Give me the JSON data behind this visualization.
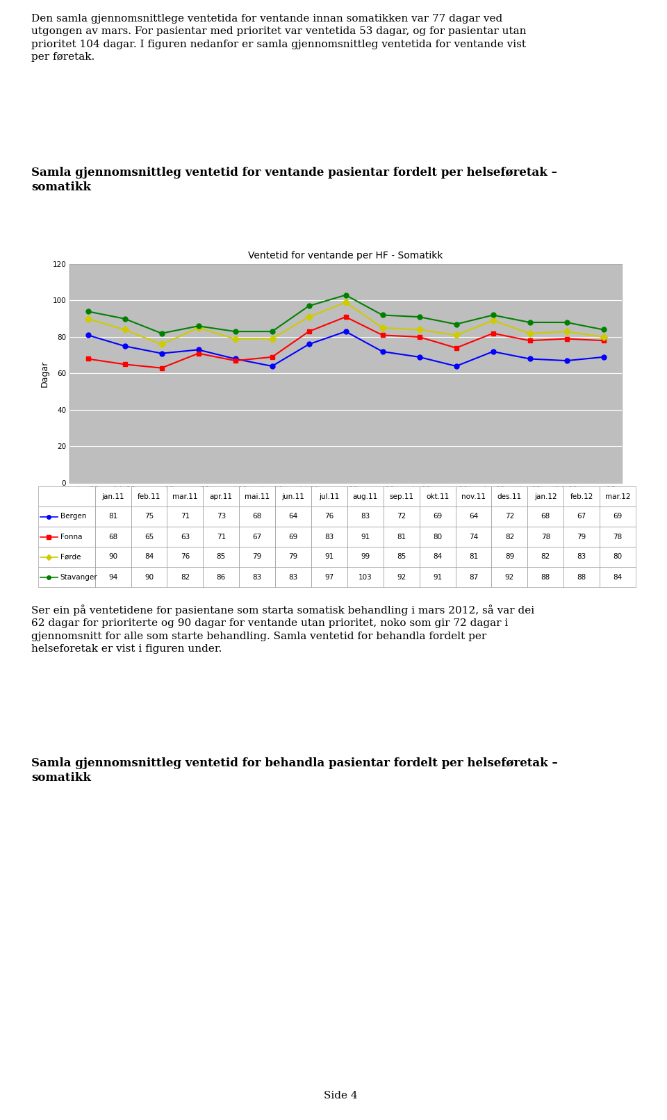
{
  "page_text_top": "Den samla gjennomsnittlege ventetida for ventande innan somatikken var 77 dagar ved utgongen av mars. For pasientar med prioritet var ventetida 53 dagar, og for pasientar utan prioritet 104 dagar. I figuren nedanfor er samla gjennomsnittleg ventetida for ventande vist per føretak.",
  "heading1": "Samla gjennomsnittleg ventetid for ventande pasientar fordelt per helseføretak –\nsomatikk",
  "chart_title": "Ventetid for ventande per HF - Somatikk",
  "ylabel": "Dagar",
  "x_labels": [
    "jan.11",
    "feb.11",
    "mar.11",
    "apr.11",
    "mai.11",
    "jun.11",
    "jul.11",
    "aug.11",
    "sep.11",
    "okt.11",
    "nov.11",
    "des.11",
    "jan.12",
    "feb.12",
    "mar.12"
  ],
  "series": [
    {
      "name": "Bergen",
      "color": "#0000FF",
      "marker": "o",
      "values": [
        81,
        75,
        71,
        73,
        68,
        64,
        76,
        83,
        72,
        69,
        64,
        72,
        68,
        67,
        69
      ]
    },
    {
      "name": "Fonna",
      "color": "#FF0000",
      "marker": "s",
      "values": [
        68,
        65,
        63,
        71,
        67,
        69,
        83,
        91,
        81,
        80,
        74,
        82,
        78,
        79,
        78
      ]
    },
    {
      "name": "Førde",
      "color": "#CCCC00",
      "marker": "D",
      "values": [
        90,
        84,
        76,
        85,
        79,
        79,
        91,
        99,
        85,
        84,
        81,
        89,
        82,
        83,
        80
      ]
    },
    {
      "name": "Stavanger",
      "color": "#008000",
      "marker": "o",
      "values": [
        94,
        90,
        82,
        86,
        83,
        83,
        97,
        103,
        92,
        91,
        87,
        92,
        88,
        88,
        84
      ]
    }
  ],
  "ylim": [
    0,
    120
  ],
  "yticks": [
    0,
    20,
    40,
    60,
    80,
    100,
    120
  ],
  "page_text_bottom": "Ser ein på ventetidene for pasientane som starta somatisk behandling i mars 2012, så var dei 62 dagar for prioriterte og 90 dagar for ventande utan prioritet, noko som gir 72 dagar i gjennomsnitt for alle som starte behandling. Samla ventetid for behandla fordelt per helseforetak er vist i figuren under.",
  "heading2": "Samla gjennomsnittleg ventetid for behandla pasientar fordelt per helseføretak –\nsomatikk",
  "page_number": "Side 4",
  "plot_area_bg": "#BEBEBE",
  "fig_bg": "#FFFFFF",
  "grid_color": "#FFFFFF",
  "outer_box_bg": "#D3D3D3"
}
